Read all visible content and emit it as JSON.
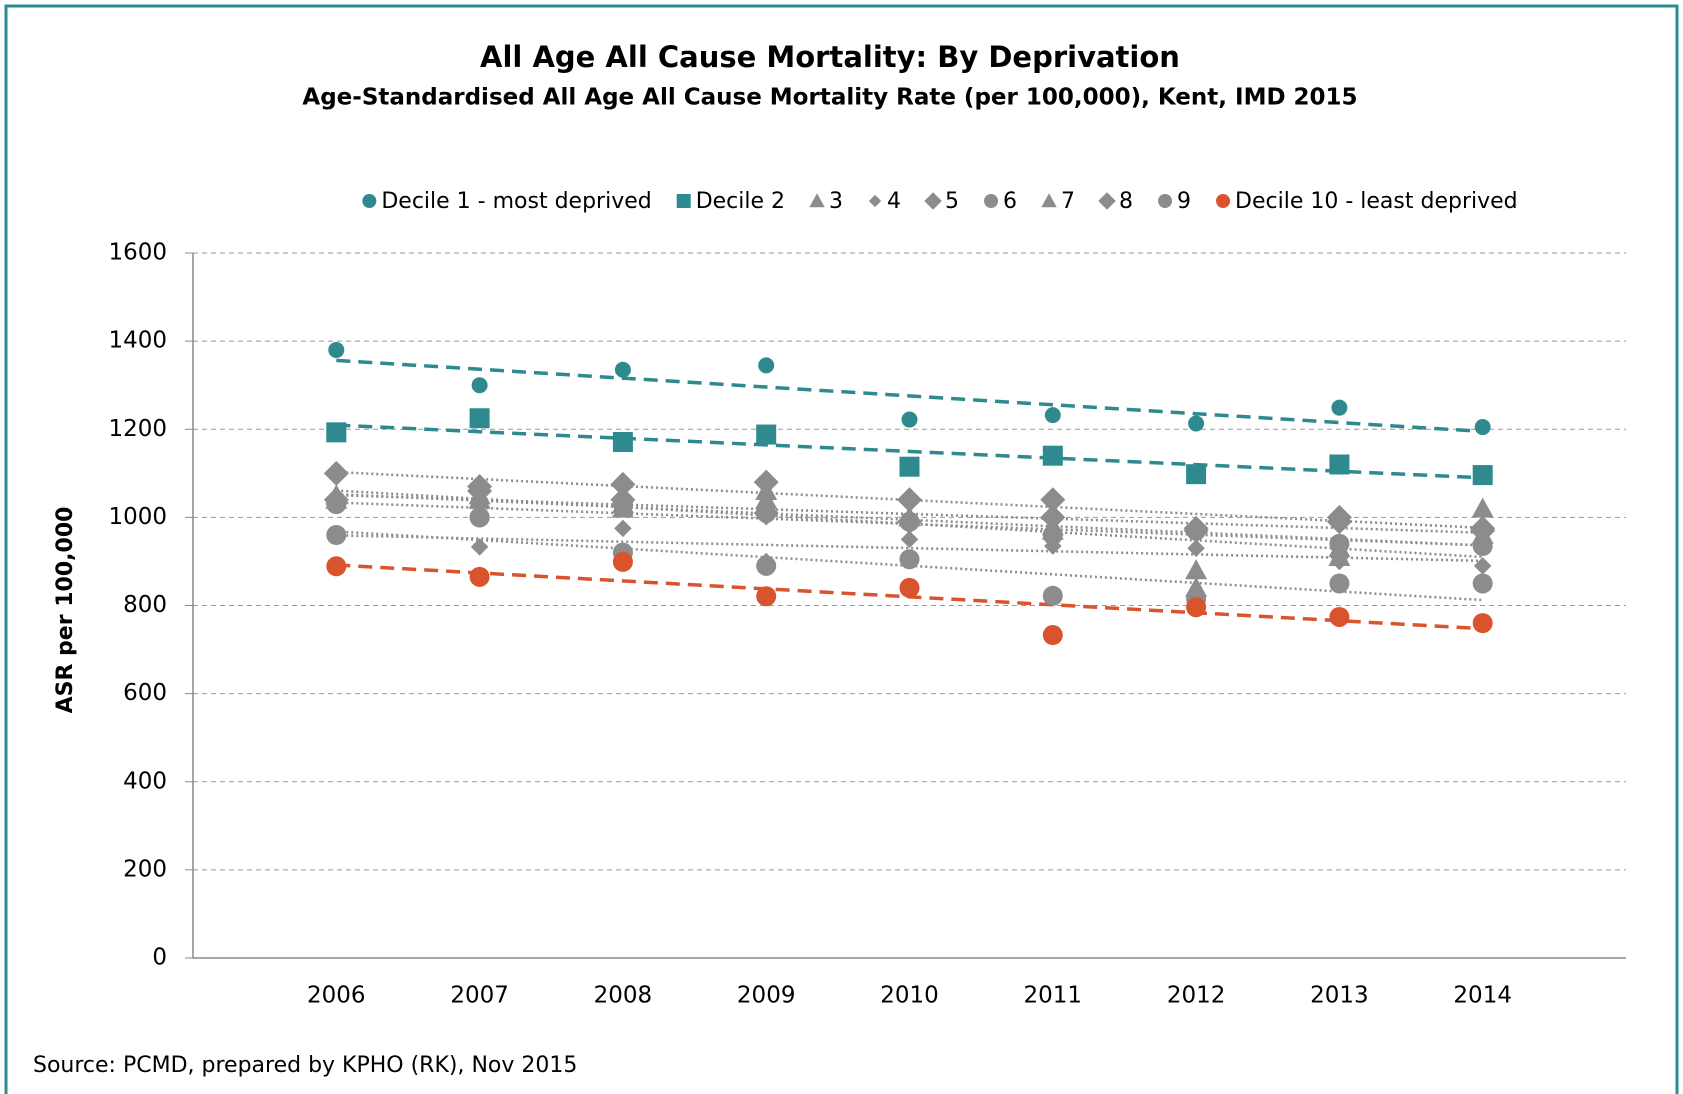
{
  "chart_data": {
    "type": "scatter",
    "title": "All Age All Cause Mortality: By Deprivation",
    "subtitle": "Age-Standardised All Age All Cause Mortality Rate (per 100,000), Kent, IMD 2015",
    "y_label": "ASR per 100,000",
    "source": "Source: PCMD, prepared by KPHO (RK), Nov 2015",
    "x": [
      2006,
      2007,
      2008,
      2009,
      2010,
      2011,
      2012,
      2013,
      2014
    ],
    "xlim": [
      2005,
      2015
    ],
    "xticks": [
      2006,
      2007,
      2008,
      2009,
      2010,
      2011,
      2012,
      2013,
      2014
    ],
    "ylim": [
      0,
      1600
    ],
    "yticks": [
      0,
      200,
      400,
      600,
      800,
      1000,
      1200,
      1400,
      1600
    ],
    "grid": true,
    "legend": "top",
    "trendline": true,
    "series": [
      {
        "name": "Decile 1 - most deprived",
        "color": "#2e8a8f",
        "marker": "circle",
        "values": [
          1380,
          1300,
          1335,
          1345,
          1222,
          1232,
          1213,
          1249,
          1205
        ]
      },
      {
        "name": "Decile 2",
        "color": "#2e8a8f",
        "marker": "square",
        "values": [
          1193,
          1225,
          1171,
          1188,
          1115,
          1140,
          1098,
          1120,
          1096
        ]
      },
      {
        "name": "3",
        "color": "#8c8c8c",
        "marker": "triangle",
        "values": [
          1050,
          1040,
          1030,
          1040,
          1000,
          980,
          880,
          910,
          1020
        ]
      },
      {
        "name": "4",
        "color": "#8c8c8c",
        "marker": "diamond-small",
        "values": [
          960,
          933,
          975,
          900,
          950,
          935,
          930,
          900,
          890
        ]
      },
      {
        "name": "5",
        "color": "#8c8c8c",
        "marker": "diamond",
        "values": [
          1100,
          1070,
          1075,
          1080,
          1040,
          1040,
          975,
          1000,
          975
        ]
      },
      {
        "name": "6",
        "color": "#8c8c8c",
        "marker": "circle",
        "values": [
          1030,
          1000,
          1030,
          1010,
          990,
          960,
          970,
          940,
          935
        ]
      },
      {
        "name": "7",
        "color": "#8c8c8c",
        "marker": "triangle",
        "values": [
          1040,
          1050,
          1020,
          1060,
          1000,
          970,
          840,
          930,
          960
        ]
      },
      {
        "name": "8",
        "color": "#8c8c8c",
        "marker": "diamond",
        "values": [
          1040,
          1060,
          1040,
          1010,
          990,
          1000,
          970,
          990,
          970
        ]
      },
      {
        "name": "9",
        "color": "#8c8c8c",
        "marker": "circle",
        "values": [
          960,
          1000,
          920,
          890,
          905,
          822,
          815,
          850,
          850
        ]
      },
      {
        "name": "Decile 10 - least deprived",
        "color": "#d9532c",
        "marker": "circle",
        "values": [
          889,
          865,
          899,
          821,
          840,
          733,
          796,
          774,
          760
        ]
      }
    ]
  }
}
